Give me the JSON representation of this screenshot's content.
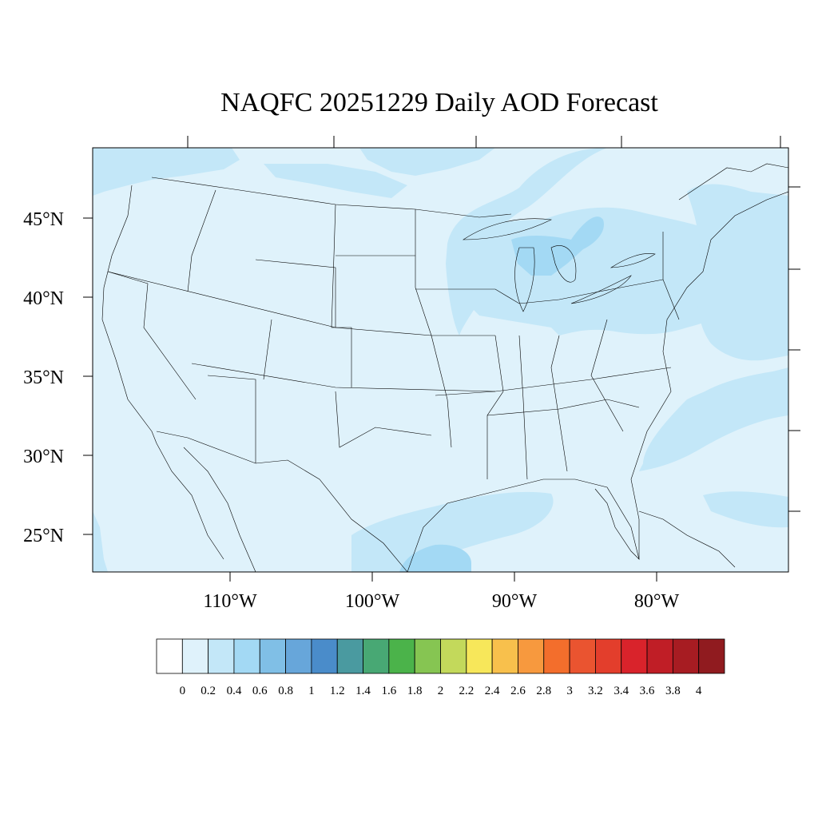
{
  "title": "NAQFC 20251229 Daily AOD Forecast",
  "map": {
    "region": "CONUS",
    "lat_labels": [
      "45°N",
      "40°N",
      "35°N",
      "30°N",
      "25°N"
    ],
    "lon_labels": [
      "110°W",
      "100°W",
      "90°W",
      "80°W"
    ],
    "background_color": "#dff2fb",
    "shade_colors": {
      "light": "#c3e7f8",
      "medium": "#a3d9f4"
    }
  },
  "colorbar": {
    "labels": [
      "0",
      "0.2",
      "0.4",
      "0.6",
      "0.8",
      "1",
      "1.2",
      "1.4",
      "1.6",
      "1.8",
      "2",
      "2.2",
      "2.4",
      "2.6",
      "2.8",
      "3",
      "3.2",
      "3.4",
      "3.6",
      "3.8",
      "4"
    ],
    "colors": [
      "#ffffff",
      "#dff2fb",
      "#c3e7f8",
      "#a3d9f4",
      "#80bfe6",
      "#67a6da",
      "#4a8cca",
      "#4a9aa0",
      "#48a874",
      "#4bb34a",
      "#86c552",
      "#c3d95b",
      "#f7e75a",
      "#f8c04c",
      "#f7993e",
      "#f36e2c",
      "#ea5430",
      "#e33e2c",
      "#d9232b",
      "#c01e26",
      "#a71c22",
      "#901b1f"
    ]
  }
}
